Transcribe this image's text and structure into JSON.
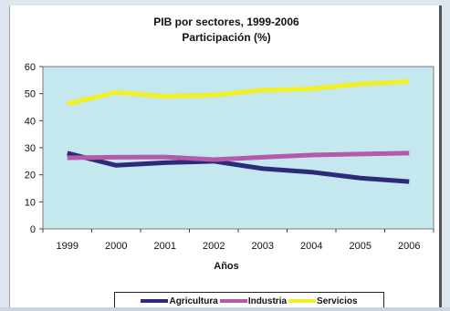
{
  "chart_data": {
    "type": "line",
    "title": "PIB por sectores, 1999-2006",
    "subtitle": "Participación (%)",
    "xlabel": "Años",
    "ylabel": "",
    "categories": [
      "1999",
      "2000",
      "2001",
      "2002",
      "2003",
      "2004",
      "2005",
      "2006"
    ],
    "ylim": [
      0,
      60
    ],
    "yticks": [
      0,
      10,
      20,
      30,
      40,
      50,
      60
    ],
    "grid": false,
    "legend_position": "bottom",
    "plot_background": "#c5e8ee",
    "series": [
      {
        "name": "Agricultura",
        "color": "#2e2a7a",
        "values": [
          28.0,
          23.5,
          24.5,
          25.0,
          22.3,
          21.0,
          18.8,
          17.5
        ]
      },
      {
        "name": "Industria",
        "color": "#b45aa8",
        "values": [
          26.3,
          26.5,
          26.6,
          25.6,
          26.5,
          27.3,
          27.7,
          28.0
        ]
      },
      {
        "name": "Servicios",
        "color": "#f2ef22",
        "values": [
          46.2,
          50.5,
          49.0,
          49.5,
          51.3,
          51.8,
          53.6,
          54.5
        ]
      }
    ]
  }
}
